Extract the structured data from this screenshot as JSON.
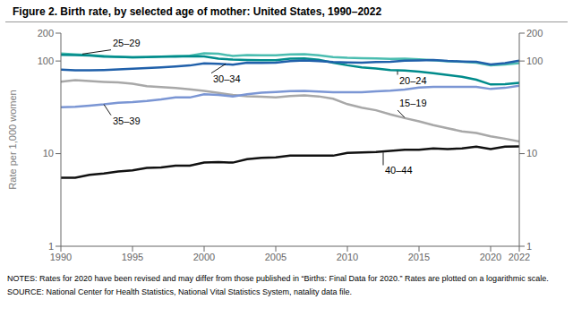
{
  "chart_data": {
    "type": "line",
    "title": "Figure 2. Birth rate, by selected age of mother: United States, 1990–2022",
    "y_label": "Rate per 1,000 women",
    "notes": "NOTES: Rates for 2020 have been revised and may differ from those published in “Births: Final Data for 2020.” Rates are plotted on a logarithmic scale.",
    "source": "SOURCE: National Center for Health Statistics, National Vital Statistics System, natality data file.",
    "log": "y",
    "x": [
      1990,
      1991,
      1992,
      1993,
      1994,
      1995,
      1996,
      1997,
      1998,
      1999,
      2000,
      2001,
      2002,
      2003,
      2004,
      2005,
      2006,
      2007,
      2008,
      2009,
      2010,
      2011,
      2012,
      2013,
      2014,
      2015,
      2016,
      2017,
      2018,
      2019,
      2020,
      2021,
      2022
    ],
    "series": [
      {
        "name": "25–29",
        "color": "#4bbdb0",
        "values": [
          120.2,
          118.2,
          115.7,
          113.1,
          111.0,
          109.8,
          110.4,
          111.2,
          113.1,
          114.0,
          121.4,
          119.6,
          113.4,
          115.6,
          115.5,
          115.5,
          117.7,
          118.5,
          115.1,
          110.5,
          108.3,
          107.2,
          106.5,
          105.5,
          105.8,
          104.3,
          102.1,
          99.0,
          98.0,
          96.0,
          90.0,
          92.0,
          95.0
        ]
      },
      {
        "name": "20–24",
        "color": "#008b8b",
        "values": [
          116.5,
          115.7,
          114.6,
          111.3,
          111.0,
          109.8,
          110.4,
          111.2,
          111.8,
          113.0,
          112.3,
          106.2,
          103.6,
          102.6,
          101.8,
          102.2,
          105.9,
          106.4,
          103.0,
          96.0,
          90.0,
          85.3,
          83.0,
          80.0,
          79.0,
          76.8,
          73.8,
          70.8,
          67.6,
          62.8,
          55.8,
          56.3,
          58.0
        ]
      },
      {
        "name": "30–34",
        "color": "#2060aa",
        "values": [
          80.8,
          79.5,
          79.5,
          80.0,
          81.0,
          82.5,
          83.9,
          85.3,
          87.4,
          89.5,
          94.1,
          93.4,
          91.5,
          95.7,
          95.3,
          95.8,
          99.9,
          101.5,
          99.8,
          97.5,
          96.5,
          95.9,
          97.3,
          98.0,
          100.8,
          101.5,
          102.7,
          100.3,
          98.8,
          98.0,
          92.0,
          95.0,
          101.0
        ]
      },
      {
        "name": "15–19",
        "color": "#a8a8a8",
        "values": [
          59.9,
          62.1,
          60.7,
          59.6,
          58.9,
          56.8,
          53.5,
          52.3,
          51.1,
          49.6,
          47.7,
          45.3,
          43.0,
          41.6,
          41.1,
          40.5,
          41.9,
          42.5,
          41.5,
          39.1,
          34.2,
          31.3,
          29.4,
          26.5,
          24.2,
          22.3,
          20.3,
          18.8,
          17.4,
          16.7,
          15.4,
          14.5,
          13.5
        ]
      },
      {
        "name": "35–39",
        "color": "#7b96d4",
        "values": [
          31.7,
          32.0,
          33.0,
          34.0,
          35.5,
          36.1,
          37.1,
          38.5,
          40.4,
          40.4,
          43.8,
          43.0,
          41.4,
          43.8,
          45.4,
          46.3,
          47.3,
          47.5,
          46.9,
          46.0,
          45.9,
          45.9,
          47.1,
          47.8,
          49.3,
          51.8,
          52.7,
          52.6,
          52.6,
          52.7,
          49.9,
          51.3,
          54.0
        ]
      },
      {
        "name": "40–44",
        "color": "#111111",
        "values": [
          5.5,
          5.5,
          5.9,
          6.1,
          6.4,
          6.6,
          7.0,
          7.1,
          7.4,
          7.4,
          8.0,
          8.1,
          8.0,
          8.7,
          9.0,
          9.1,
          9.5,
          9.5,
          9.5,
          9.5,
          10.2,
          10.3,
          10.4,
          10.7,
          11.0,
          11.0,
          11.4,
          11.2,
          11.4,
          11.9,
          11.2,
          11.9,
          12.0
        ]
      }
    ],
    "xlim": [
      1990,
      2022
    ],
    "xticks": [
      1990,
      1995,
      2000,
      2005,
      2010,
      2015,
      2020,
      2022
    ],
    "ylim": [
      1,
      200
    ],
    "yticks": [
      1,
      10,
      100,
      200
    ],
    "y2lim": [
      1,
      200
    ],
    "y2ticks": [
      1,
      10,
      100,
      200
    ],
    "annotations": [
      {
        "text": "25–29",
        "xy": [
          1991.5,
          119.0
        ],
        "xytext": [
          1993.5,
          132
        ]
      },
      {
        "text": "30–34",
        "xy": [
          2001.5,
          93.0
        ],
        "xytext": [
          2000.5,
          74
        ]
      },
      {
        "text": "20–24",
        "xy": [
          2013.5,
          78.0
        ],
        "xytext": [
          2013.5,
          71
        ]
      },
      {
        "text": "35–39",
        "xy": [
          1993.0,
          34.0
        ],
        "xytext": [
          1993.5,
          26
        ]
      },
      {
        "text": "15–19",
        "xy": [
          2014.0,
          24.5
        ],
        "xytext": [
          2013.5,
          29.5
        ]
      },
      {
        "text": "40–44",
        "xy": [
          2012.5,
          10.3
        ],
        "xytext": [
          2012.5,
          7.5
        ]
      }
    ]
  }
}
